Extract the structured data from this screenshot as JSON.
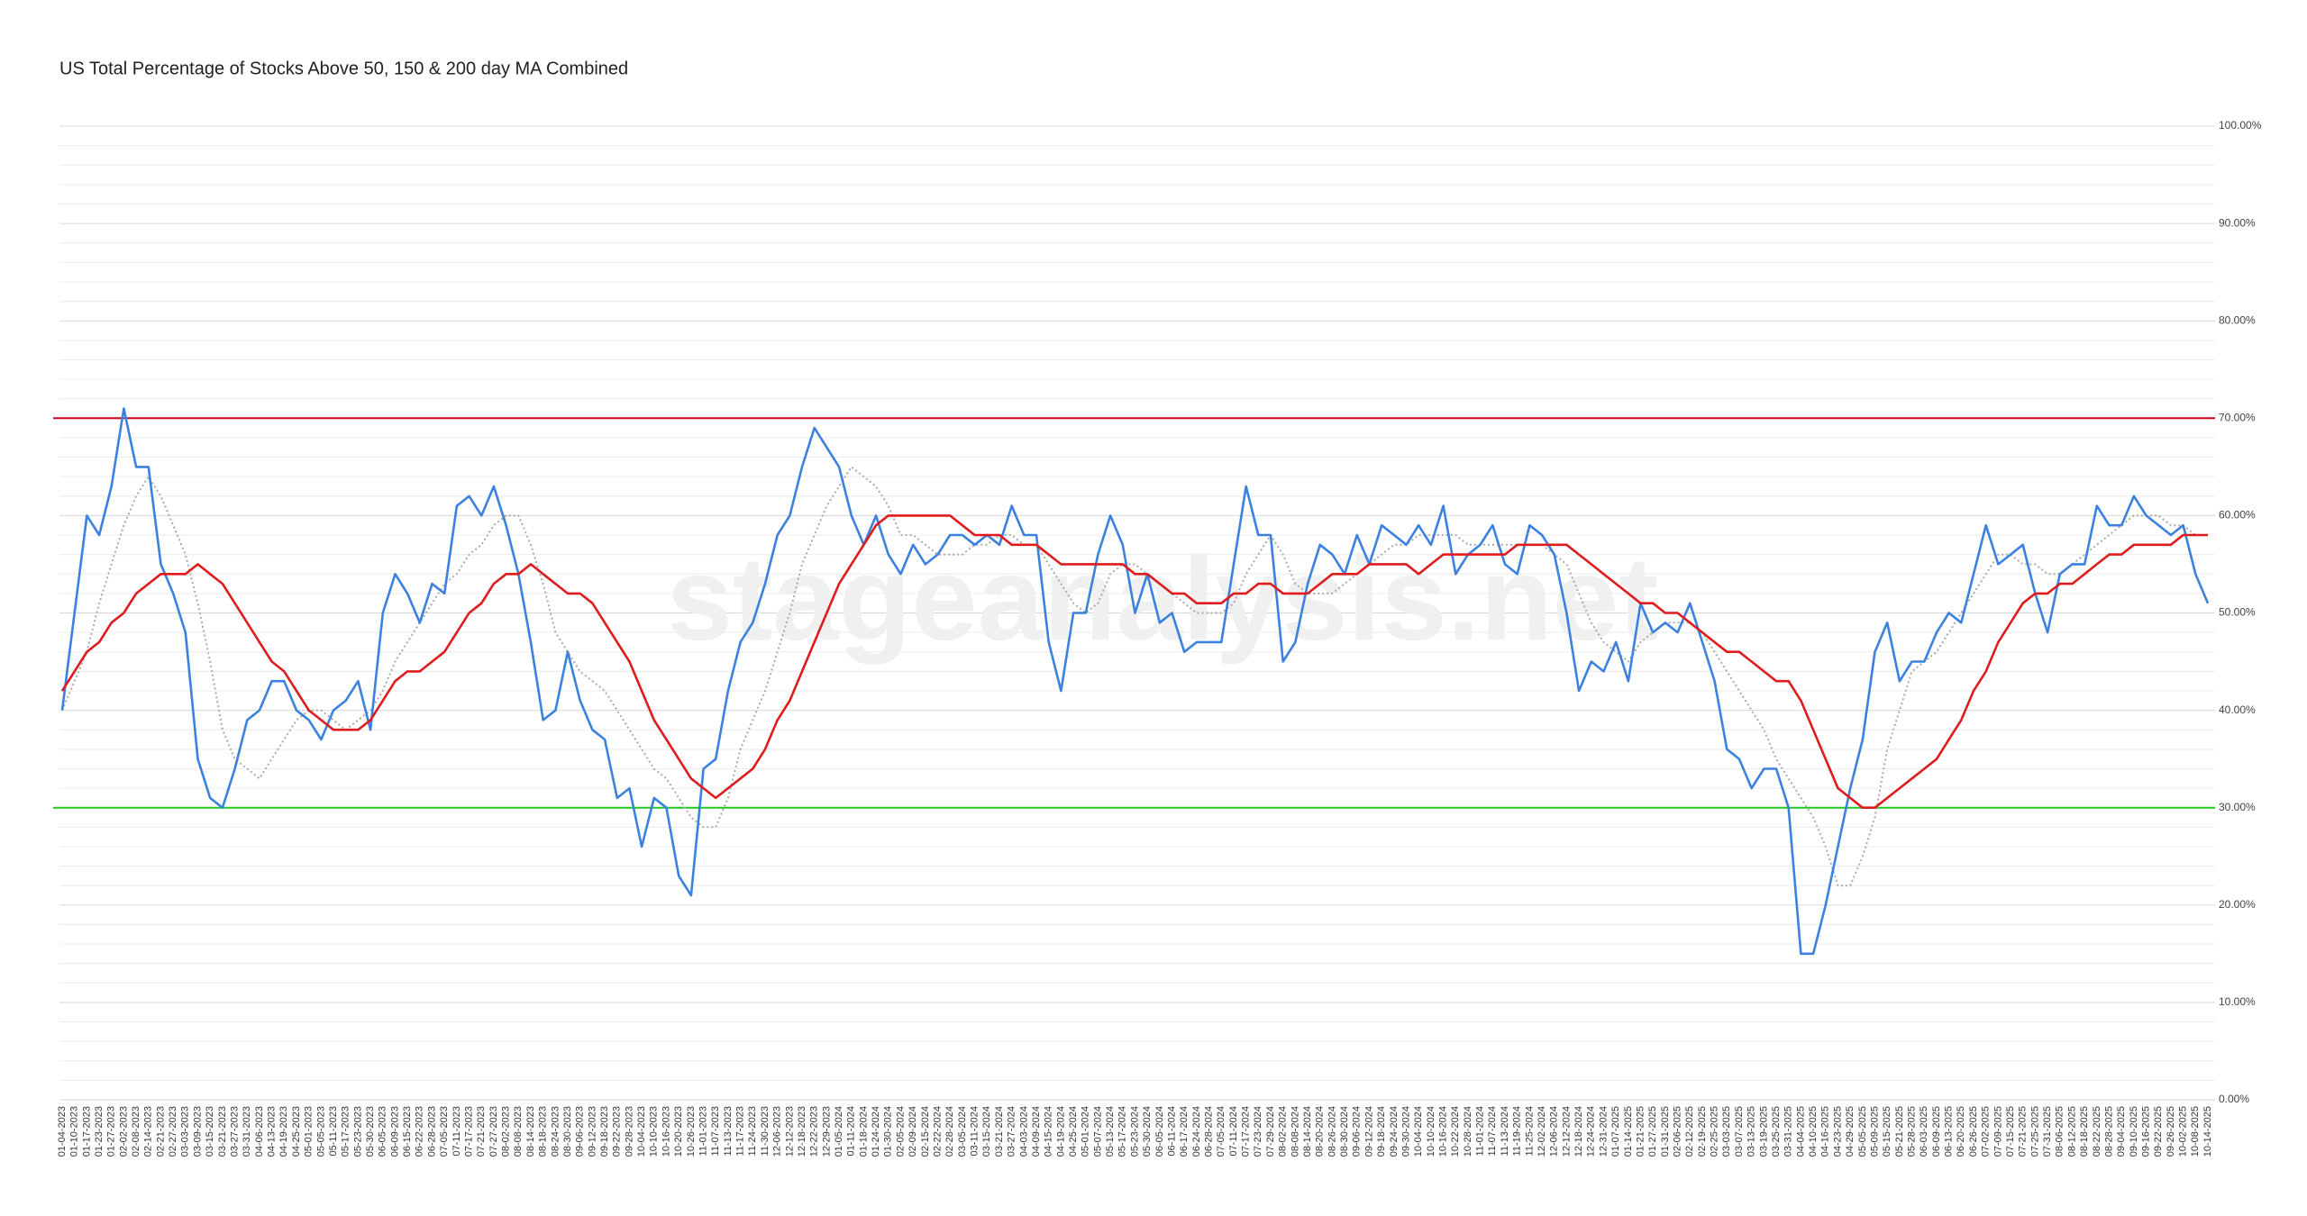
{
  "chart_data": {
    "type": "line",
    "title": "US Total Percentage of Stocks Above 50, 150 & 200 day MA Combined",
    "watermark": "stageanalysis.net",
    "categories": [
      "01-04-2023",
      "01-10-2023",
      "01-17-2023",
      "01-23-2023",
      "01-27-2023",
      "02-02-2023",
      "02-08-2023",
      "02-14-2023",
      "02-21-2023",
      "02-27-2023",
      "03-03-2023",
      "03-09-2023",
      "03-15-2023",
      "03-21-2023",
      "03-27-2023",
      "03-31-2023",
      "04-06-2023",
      "04-13-2023",
      "04-19-2023",
      "04-25-2023",
      "05-01-2023",
      "05-05-2023",
      "05-11-2023",
      "05-17-2023",
      "05-23-2023",
      "05-30-2023",
      "06-05-2023",
      "06-09-2023",
      "06-15-2023",
      "06-22-2023",
      "06-28-2023",
      "07-05-2023",
      "07-11-2023",
      "07-17-2023",
      "07-21-2023",
      "07-27-2023",
      "08-02-2023",
      "08-08-2023",
      "08-14-2023",
      "08-18-2023",
      "08-24-2023",
      "08-30-2023",
      "09-06-2023",
      "09-12-2023",
      "09-18-2023",
      "09-22-2023",
      "09-28-2023",
      "10-04-2023",
      "10-10-2023",
      "10-16-2023",
      "10-20-2023",
      "10-26-2023",
      "11-01-2023",
      "11-07-2023",
      "11-13-2023",
      "11-17-2023",
      "11-24-2023",
      "11-30-2023",
      "12-06-2023",
      "12-12-2023",
      "12-18-2023",
      "12-22-2023",
      "12-29-2023",
      "01-05-2024",
      "01-11-2024",
      "01-18-2024",
      "01-24-2024",
      "01-30-2024",
      "02-05-2024",
      "02-09-2024",
      "02-15-2024",
      "02-22-2024",
      "02-28-2024",
      "03-05-2024",
      "03-11-2024",
      "03-15-2024",
      "03-21-2024",
      "03-27-2024",
      "04-03-2024",
      "04-09-2024",
      "04-15-2024",
      "04-19-2024",
      "04-25-2024",
      "05-01-2024",
      "05-07-2024",
      "05-13-2024",
      "05-17-2024",
      "05-23-2024",
      "05-30-2024",
      "06-05-2024",
      "06-11-2024",
      "06-17-2024",
      "06-24-2024",
      "06-28-2024",
      "07-05-2024",
      "07-11-2024",
      "07-17-2024",
      "07-23-2024",
      "07-29-2024",
      "08-02-2024",
      "08-08-2024",
      "08-14-2024",
      "08-20-2024",
      "08-26-2024",
      "08-30-2024",
      "09-06-2024",
      "09-12-2024",
      "09-18-2024",
      "09-24-2024",
      "09-30-2024",
      "10-04-2024",
      "10-10-2024",
      "10-16-2024",
      "10-22-2024",
      "10-28-2024",
      "11-01-2024",
      "11-07-2024",
      "11-13-2024",
      "11-19-2024",
      "11-25-2024",
      "12-02-2024",
      "12-06-2024",
      "12-12-2024",
      "12-18-2024",
      "12-24-2024",
      "12-31-2024",
      "01-07-2025",
      "01-14-2025",
      "01-21-2025",
      "01-27-2025",
      "01-31-2025",
      "02-06-2025",
      "02-12-2025",
      "02-19-2025",
      "02-25-2025",
      "03-03-2025",
      "03-07-2025",
      "03-13-2025",
      "03-19-2025",
      "03-25-2025",
      "03-31-2025",
      "04-04-2025",
      "04-10-2025",
      "04-16-2025",
      "04-23-2025",
      "04-29-2025",
      "05-05-2025",
      "05-09-2025",
      "05-15-2025",
      "05-21-2025",
      "05-28-2025",
      "06-03-2025",
      "06-09-2025",
      "06-13-2025",
      "06-20-2025",
      "06-26-2025",
      "07-02-2025",
      "07-09-2025",
      "07-15-2025",
      "07-21-2025",
      "07-25-2025",
      "07-31-2025",
      "08-06-2025",
      "08-12-2025",
      "08-18-2025",
      "08-22-2025",
      "08-28-2025",
      "09-04-2025",
      "09-10-2025",
      "09-16-2025",
      "09-22-2025",
      "09-26-2025",
      "10-02-2025",
      "10-08-2025",
      "10-14-2025"
    ],
    "series": [
      {
        "color": "#aaaaaa",
        "line_style": "dotted",
        "values": [
          40,
          43,
          46,
          51,
          55,
          59,
          62,
          64,
          62,
          59,
          56,
          51,
          45,
          38,
          35,
          34,
          33,
          35,
          37,
          39,
          40,
          40,
          39,
          38,
          39,
          40,
          42,
          45,
          47,
          49,
          51,
          53,
          54,
          56,
          57,
          59,
          60,
          60,
          57,
          53,
          48,
          46,
          44,
          43,
          42,
          40,
          38,
          36,
          34,
          33,
          31,
          29,
          28,
          28,
          31,
          36,
          39,
          42,
          46,
          50,
          55,
          58,
          61,
          63,
          65,
          64,
          63,
          61,
          58,
          58,
          57,
          56,
          56,
          56,
          57,
          57,
          58,
          58,
          57,
          57,
          55,
          53,
          51,
          50,
          51,
          54,
          55,
          55,
          54,
          53,
          52,
          51,
          50,
          50,
          50,
          51,
          54,
          56,
          58,
          56,
          53,
          52,
          52,
          52,
          53,
          54,
          55,
          56,
          57,
          57,
          58,
          58,
          58,
          58,
          57,
          57,
          57,
          57,
          57,
          57,
          57,
          56,
          55,
          52,
          49,
          47,
          46,
          45,
          47,
          48,
          49,
          49,
          49,
          48,
          46,
          44,
          42,
          40,
          38,
          35,
          33,
          31,
          29,
          26,
          22,
          22,
          25,
          29,
          36,
          40,
          44,
          45,
          46,
          48,
          50,
          52,
          54,
          56,
          56,
          55,
          55,
          54,
          54,
          55,
          56,
          57,
          58,
          59,
          60,
          60,
          60,
          59,
          59,
          58,
          58
        ]
      },
      {
        "color": "#3b82e0",
        "line_style": "solid",
        "values": [
          40,
          50,
          60,
          58,
          63,
          71,
          65,
          65,
          55,
          52,
          48,
          35,
          31,
          30,
          34,
          39,
          40,
          43,
          43,
          40,
          39,
          37,
          40,
          41,
          43,
          38,
          50,
          54,
          52,
          49,
          53,
          52,
          61,
          62,
          60,
          63,
          59,
          54,
          47,
          39,
          40,
          46,
          41,
          38,
          37,
          31,
          32,
          26,
          31,
          30,
          23,
          21,
          34,
          35,
          42,
          47,
          49,
          53,
          58,
          60,
          65,
          69,
          67,
          65,
          60,
          57,
          60,
          56,
          54,
          57,
          55,
          56,
          58,
          58,
          57,
          58,
          57,
          61,
          58,
          58,
          47,
          42,
          50,
          50,
          56,
          60,
          57,
          50,
          54,
          49,
          50,
          46,
          47,
          47,
          47,
          55,
          63,
          58,
          58,
          45,
          47,
          53,
          57,
          56,
          54,
          58,
          55,
          59,
          58,
          57,
          59,
          57,
          61,
          54,
          56,
          57,
          59,
          55,
          54,
          59,
          58,
          56,
          50,
          42,
          45,
          44,
          47,
          43,
          51,
          48,
          49,
          48,
          51,
          47,
          43,
          36,
          35,
          32,
          34,
          34,
          30,
          15,
          15,
          20,
          26,
          32,
          37,
          46,
          49,
          43,
          45,
          45,
          48,
          50,
          49,
          54,
          59,
          55,
          56,
          57,
          52,
          48,
          54,
          55,
          55,
          61,
          59,
          59,
          62,
          60,
          59,
          58,
          59,
          54,
          51
        ]
      },
      {
        "color": "#e01b1b",
        "line_style": "solid",
        "values": [
          42,
          44,
          46,
          47,
          49,
          50,
          52,
          53,
          54,
          54,
          54,
          55,
          54,
          53,
          51,
          49,
          47,
          45,
          44,
          42,
          40,
          39,
          38,
          38,
          38,
          39,
          41,
          43,
          44,
          44,
          45,
          46,
          48,
          50,
          51,
          53,
          54,
          54,
          55,
          54,
          53,
          52,
          52,
          51,
          49,
          47,
          45,
          42,
          39,
          37,
          35,
          33,
          32,
          31,
          32,
          33,
          34,
          36,
          39,
          41,
          44,
          47,
          50,
          53,
          55,
          57,
          59,
          60,
          60,
          60,
          60,
          60,
          60,
          59,
          58,
          58,
          58,
          57,
          57,
          57,
          56,
          55,
          55,
          55,
          55,
          55,
          55,
          54,
          54,
          53,
          52,
          52,
          51,
          51,
          51,
          52,
          52,
          53,
          53,
          52,
          52,
          52,
          53,
          54,
          54,
          54,
          55,
          55,
          55,
          55,
          54,
          55,
          56,
          56,
          56,
          56,
          56,
          56,
          57,
          57,
          57,
          57,
          57,
          56,
          55,
          54,
          53,
          52,
          51,
          51,
          50,
          50,
          49,
          48,
          47,
          46,
          46,
          45,
          44,
          43,
          43,
          41,
          38,
          35,
          32,
          31,
          30,
          30,
          31,
          32,
          33,
          34,
          35,
          37,
          39,
          42,
          44,
          47,
          49,
          51,
          52,
          52,
          53,
          53,
          54,
          55,
          56,
          56,
          57,
          57,
          57,
          57,
          58,
          58,
          58
        ]
      }
    ],
    "reference_lines": [
      {
        "value": 70,
        "color": "#d0021b"
      },
      {
        "value": 30,
        "color": "#1ec81e"
      }
    ],
    "ylim": [
      0,
      100
    ],
    "yticks": [
      {
        "value": 0,
        "label": "0.00%"
      },
      {
        "value": 10,
        "label": "10.00%"
      },
      {
        "value": 20,
        "label": "20.00%"
      },
      {
        "value": 30,
        "label": "30.00%"
      },
      {
        "value": 40,
        "label": "40.00%"
      },
      {
        "value": 50,
        "label": "50.00%"
      },
      {
        "value": 60,
        "label": "60.00%"
      },
      {
        "value": 70,
        "label": "70.00%"
      },
      {
        "value": 80,
        "label": "80.00%"
      },
      {
        "value": 90,
        "label": "90.00%"
      },
      {
        "value": 100,
        "label": "100.00%"
      }
    ],
    "grid": true,
    "minor_gridlines_per_tick": 5
  }
}
